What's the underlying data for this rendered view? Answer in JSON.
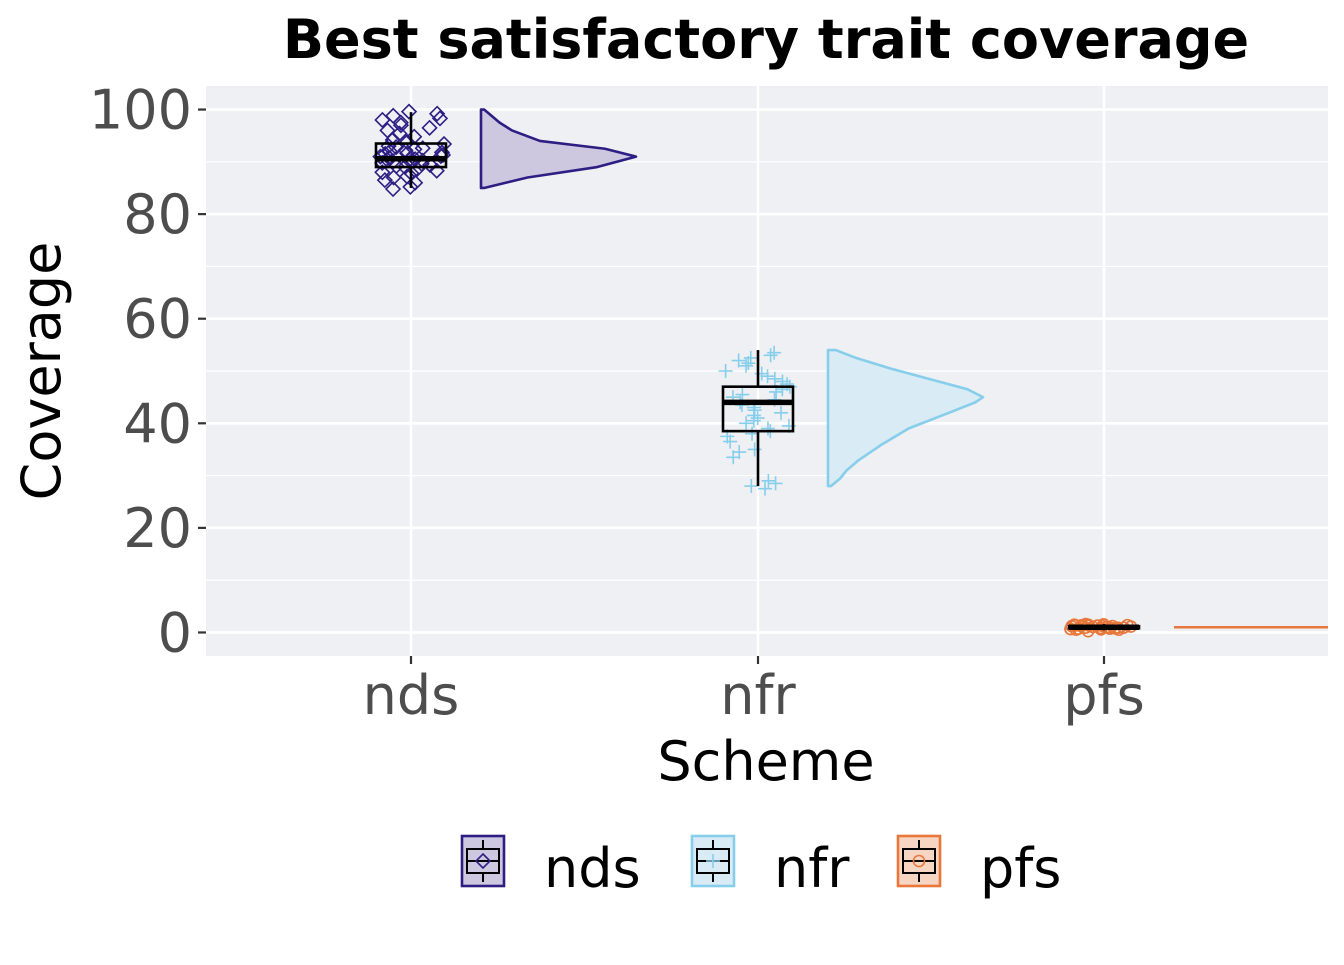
{
  "chart_data": {
    "type": "raincloud",
    "title": "Best satisfactory trait coverage",
    "xlabel": "Scheme",
    "ylabel": "Coverage",
    "categories": [
      "nds",
      "nfr",
      "pfs"
    ],
    "ylim": [
      -4.5,
      104.5
    ],
    "yticks": [
      0,
      20,
      40,
      60,
      80,
      100
    ],
    "grid": true,
    "legend_position": "bottom",
    "legend": [
      {
        "label": "nds",
        "color": "#2e1e84",
        "fill": "#cdc8e0",
        "marker": "diamond"
      },
      {
        "label": "nfr",
        "color": "#87ceeb",
        "fill": "#d9ebf5",
        "marker": "plus"
      },
      {
        "label": "pfs",
        "color": "#e8773a",
        "fill": "#f6d6c3",
        "marker": "circle"
      }
    ],
    "series": [
      {
        "name": "nds",
        "color": "#2e1e84",
        "fill": "#cdc8e0",
        "box": {
          "min": 85,
          "q1": 89,
          "median": 90.6,
          "q3": 93.5,
          "max": 99.5
        },
        "density": [
          [
            85,
            0.02
          ],
          [
            87,
            0.3
          ],
          [
            89,
            0.75
          ],
          [
            91,
            1.0
          ],
          [
            92.5,
            0.8
          ],
          [
            94,
            0.38
          ],
          [
            96,
            0.2
          ],
          [
            97.5,
            0.12
          ],
          [
            99,
            0.06
          ],
          [
            100,
            0.02
          ]
        ],
        "points": [
          85.2,
          86,
          86.5,
          87,
          87.2,
          87.8,
          88,
          88.3,
          88.6,
          89,
          89.2,
          89.4,
          89.6,
          89.8,
          90,
          90,
          90.2,
          90.3,
          90.5,
          90.6,
          90.8,
          91,
          91.1,
          91.3,
          91.5,
          91.6,
          91.8,
          92,
          92.2,
          92.4,
          92.6,
          92.8,
          93,
          93.4,
          93.8,
          94.2,
          94.8,
          95.4,
          96,
          96.5,
          97,
          97.5,
          98,
          98.3,
          98.8,
          99.2,
          99.6,
          84.8
        ]
      },
      {
        "name": "nfr",
        "color": "#87ceeb",
        "fill": "#d9ebf5",
        "box": {
          "min": 28,
          "q1": 38.5,
          "median": 44,
          "q3": 47,
          "max": 54
        },
        "density": [
          [
            28,
            0.02
          ],
          [
            29.5,
            0.08
          ],
          [
            31,
            0.12
          ],
          [
            33,
            0.2
          ],
          [
            36,
            0.35
          ],
          [
            39,
            0.52
          ],
          [
            42,
            0.78
          ],
          [
            44,
            0.95
          ],
          [
            45,
            1.0
          ],
          [
            46.5,
            0.9
          ],
          [
            48.5,
            0.65
          ],
          [
            50.5,
            0.4
          ],
          [
            52.5,
            0.18
          ],
          [
            54,
            0.05
          ]
        ],
        "points": [
          27.5,
          28,
          28.5,
          29,
          33.5,
          34.5,
          35,
          36.5,
          37.5,
          38,
          38.5,
          39,
          39.5,
          40,
          40.5,
          41,
          41.5,
          42,
          42.5,
          43,
          43.5,
          44,
          44.5,
          45,
          45.5,
          46,
          46.5,
          47,
          47.5,
          48,
          48.5,
          49,
          49.5,
          50,
          51,
          51.5,
          52,
          52.5,
          53,
          53.5
        ]
      },
      {
        "name": "pfs",
        "color": "#e8773a",
        "fill": "#f6d6c3",
        "box": {
          "min": 0.4,
          "q1": 0.8,
          "median": 1.0,
          "q3": 1.2,
          "max": 1.6
        },
        "density": [
          [
            0.6,
            0.02
          ],
          [
            1.0,
            1.0
          ],
          [
            1.4,
            0.02
          ]
        ],
        "points": [
          0.5,
          0.6,
          0.7,
          0.8,
          0.8,
          0.9,
          0.9,
          1.0,
          1.0,
          1.0,
          1.0,
          1.1,
          1.1,
          1.1,
          1.2,
          1.2,
          1.3,
          1.3,
          1.4,
          1.5,
          0.7,
          0.9,
          1.0,
          1.1,
          1.2,
          0.8,
          1.0,
          1.3,
          0.6,
          1.4
        ]
      }
    ]
  }
}
